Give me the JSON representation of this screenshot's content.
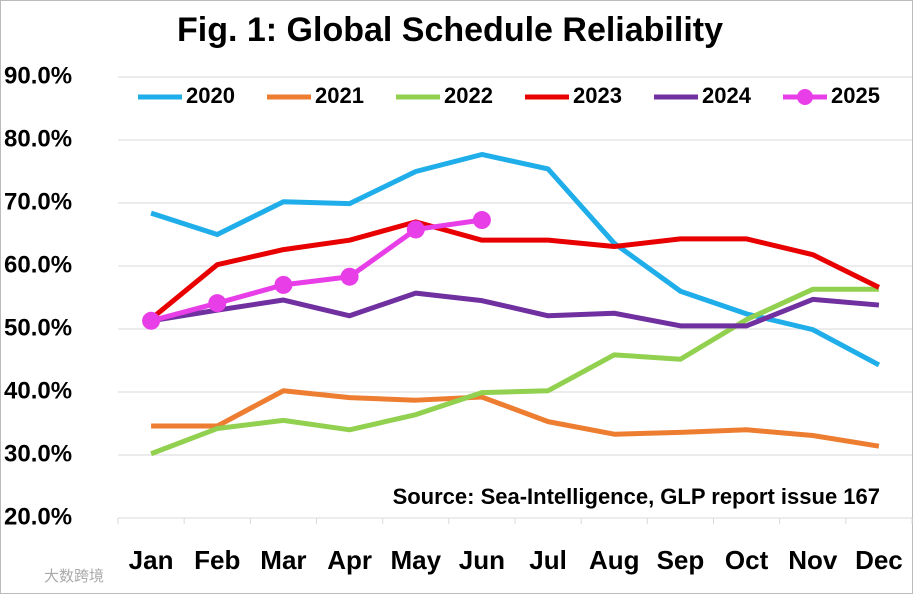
{
  "chart_data": {
    "type": "line",
    "title": "Fig. 1: Global Schedule Reliability",
    "annotation": "Source: Sea-Intelligence, GLP report issue 167",
    "watermark": "大数跨境",
    "categories": [
      "Jan",
      "Feb",
      "Mar",
      "Apr",
      "May",
      "Jun",
      "Jul",
      "Aug",
      "Sep",
      "Oct",
      "Nov",
      "Dec"
    ],
    "series": [
      {
        "name": "2020",
        "color": "#1faee9",
        "markers": false,
        "values": [
          68.4,
          65.0,
          70.2,
          69.9,
          75.0,
          77.7,
          75.4,
          63.6,
          56.0,
          52.4,
          49.9,
          44.3
        ]
      },
      {
        "name": "2021",
        "color": "#ed7d31",
        "markers": false,
        "values": [
          34.6,
          34.6,
          40.2,
          39.1,
          38.7,
          39.2,
          35.3,
          33.3,
          33.6,
          34.0,
          33.1,
          31.4
        ]
      },
      {
        "name": "2022",
        "color": "#92d050",
        "markers": false,
        "values": [
          30.2,
          34.2,
          35.5,
          34.0,
          36.4,
          39.9,
          40.2,
          45.9,
          45.2,
          51.5,
          56.3,
          56.3
        ]
      },
      {
        "name": "2023",
        "color": "#e80000",
        "markers": false,
        "values": [
          51.6,
          60.2,
          62.6,
          64.1,
          67.0,
          64.1,
          64.1,
          63.1,
          64.3,
          64.3,
          61.8,
          56.6
        ]
      },
      {
        "name": "2024",
        "color": "#7030a0",
        "markers": false,
        "values": [
          51.3,
          53.0,
          54.6,
          52.1,
          55.7,
          54.5,
          52.1,
          52.5,
          50.5,
          50.5,
          54.7,
          53.8
        ]
      },
      {
        "name": "2025",
        "color": "#e83ee8",
        "markers": true,
        "values": [
          51.3,
          54.1,
          57.0,
          58.3,
          65.8,
          67.3,
          null,
          null,
          null,
          null,
          null,
          null
        ]
      }
    ],
    "ylim": [
      20,
      90
    ],
    "yticks": [
      {
        "value": 20,
        "label": "20.0%"
      },
      {
        "value": 30,
        "label": "30.0%"
      },
      {
        "value": 40,
        "label": "40.0%"
      },
      {
        "value": 50,
        "label": "50.0%"
      },
      {
        "value": 60,
        "label": "60.0%"
      },
      {
        "value": 70,
        "label": "70.0%"
      },
      {
        "value": 80,
        "label": "80.0%"
      },
      {
        "value": 90,
        "label": "90.0%"
      }
    ],
    "grid": true,
    "legend": "top"
  }
}
